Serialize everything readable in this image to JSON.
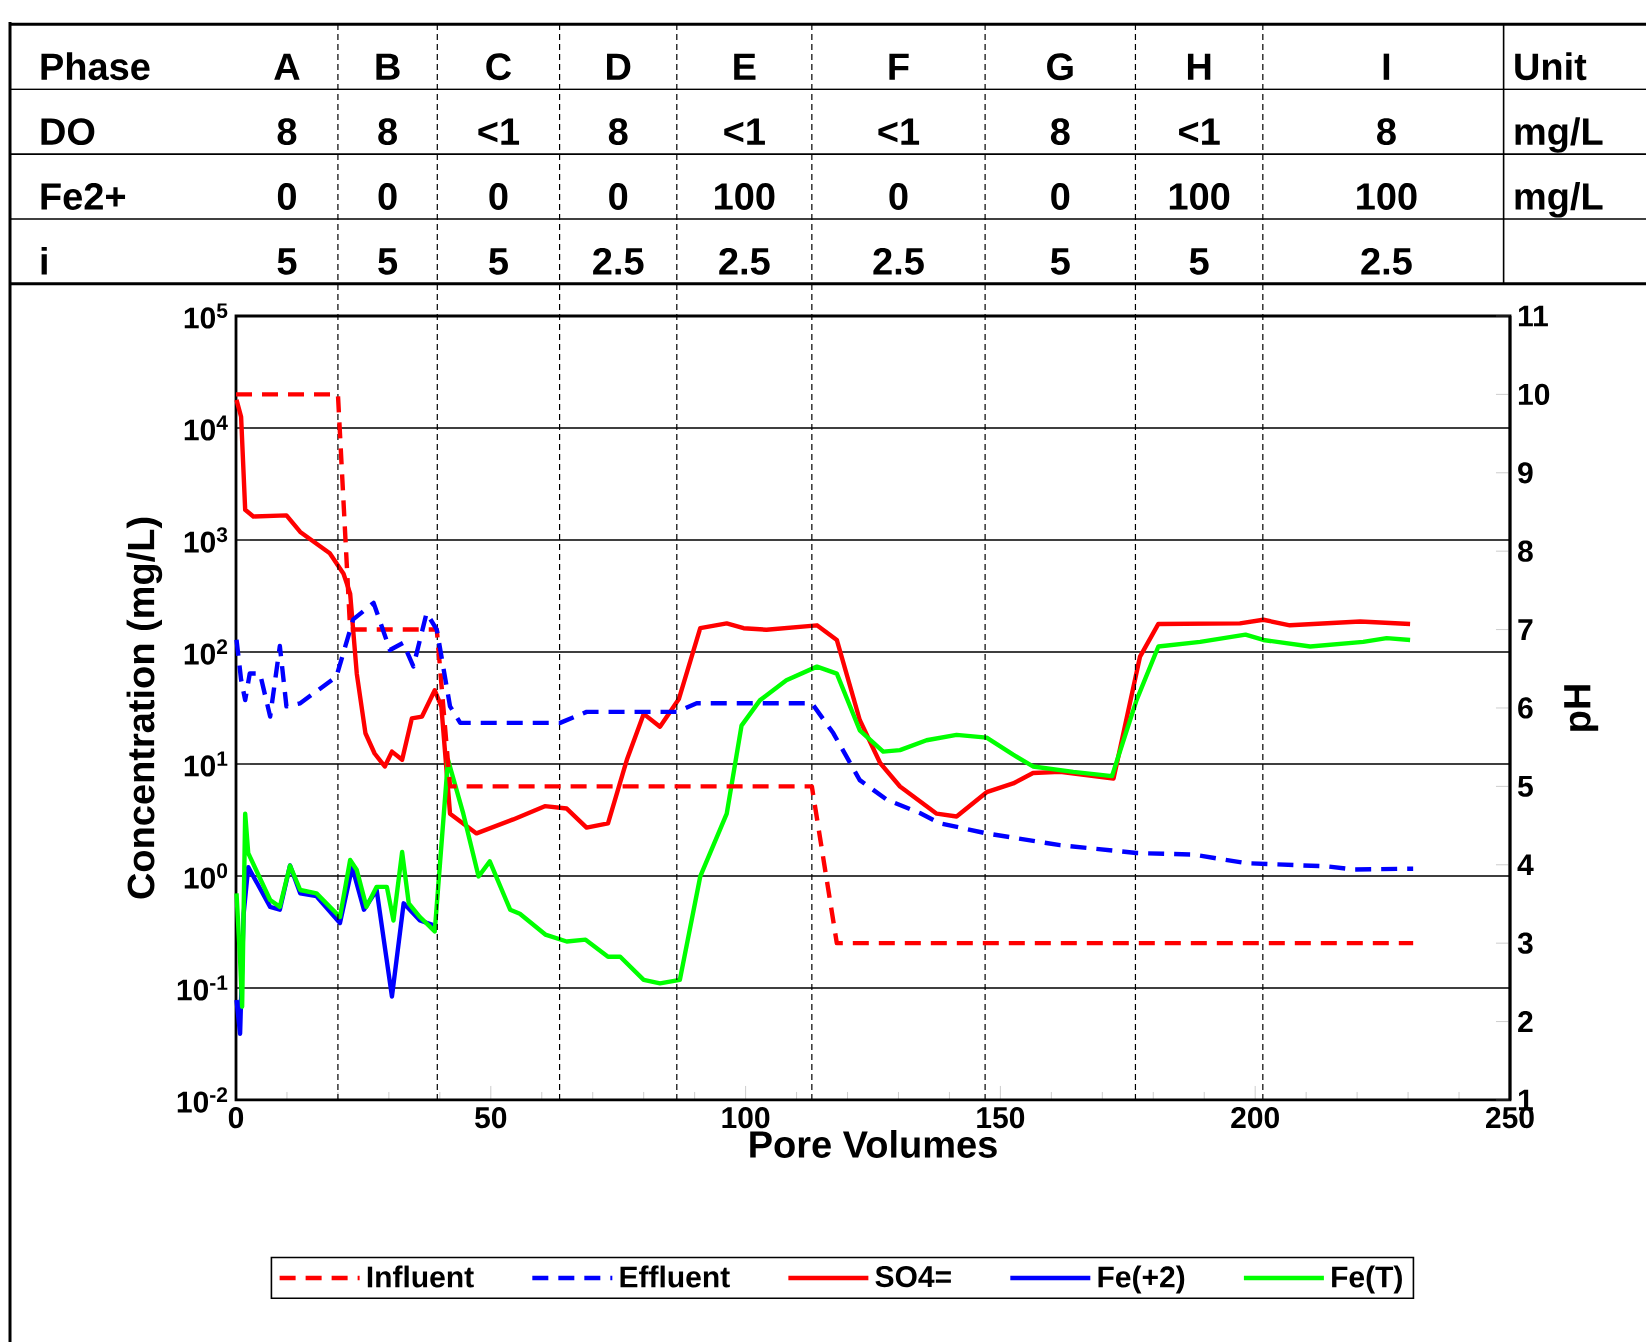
{
  "chart_data": {
    "type": "line",
    "xlabel": "Pore Volumes",
    "ylabel": "Concentration (mg/L)",
    "y2label": "pH",
    "xlim": [
      0,
      250
    ],
    "xticks": [
      0,
      50,
      100,
      150,
      200,
      250
    ],
    "ylim": [
      0.01,
      100000
    ],
    "log": "y",
    "yticks": [
      {
        "value": 0.01,
        "label": "10$^{-2}$"
      },
      {
        "value": 0.1,
        "label": "10$^{-1}$"
      },
      {
        "value": 1,
        "label": "10$^{0}$"
      },
      {
        "value": 10,
        "label": "10$^{1}$"
      },
      {
        "value": 100,
        "label": "10$^{2}$"
      },
      {
        "value": 1000,
        "label": "10$^{3}$"
      },
      {
        "value": 10000,
        "label": "10$^{4}$"
      },
      {
        "value": 100000,
        "label": "10$^{5}$"
      }
    ],
    "y2lim": [
      1,
      11
    ],
    "y2ticks": [
      1,
      2,
      3,
      4,
      5,
      6,
      7,
      8,
      9,
      10,
      11
    ],
    "grid": "y",
    "legend": "bottom",
    "marker": "none",
    "series": [
      {
        "name": "Influent",
        "color": "#ff0000",
        "axis": "y2",
        "line_style": "dashed",
        "x": [
          0,
          20,
          22.4,
          39.4,
          42,
          113,
          117.9,
          231
        ],
        "values": [
          10,
          10,
          7,
          7,
          5,
          5,
          3,
          3
        ]
      },
      {
        "name": "Effluent",
        "color": "#0000ff",
        "axis": "y2",
        "line_style": "dashed",
        "x": [
          0.1,
          1.0,
          1.8,
          2.7,
          4.7,
          6.7,
          8.6,
          9.9,
          12.6,
          19.7,
          23.0,
          27.0,
          30.2,
          32.8,
          34.8,
          37.4,
          39.4,
          42.0,
          44.0,
          63.6,
          68.8,
          86.5,
          90.4,
          113,
          117.2,
          122.4,
          127.7,
          134.2,
          138.1,
          147.3,
          161.7,
          176.7,
          187.9,
          198.3,
          214,
          219.3,
          231
        ],
        "values": [
          6.87,
          6.36,
          6.1,
          6.44,
          6.44,
          5.89,
          6.79,
          6.02,
          6.06,
          6.4,
          7.13,
          7.34,
          6.74,
          6.83,
          6.53,
          7.21,
          7.0,
          6.02,
          5.81,
          5.81,
          5.95,
          5.95,
          6.06,
          6.06,
          5.68,
          5.08,
          4.83,
          4.66,
          4.53,
          4.4,
          4.25,
          4.15,
          4.13,
          4.02,
          3.98,
          3.94,
          3.95
        ]
      },
      {
        "name": "SO4=",
        "color": "#ff0000",
        "line_style": "solid",
        "x": [
          0.1,
          1.0,
          1.8,
          3.4,
          9.9,
          12.6,
          18.4,
          21.1,
          22.4,
          23.7,
          25.4,
          27.2,
          29.2,
          30.6,
          32.6,
          34.5,
          36.5,
          39.0,
          40.3,
          42.0,
          47.2,
          54.4,
          60.6,
          64.9,
          68.8,
          73.0,
          76.7,
          80.0,
          83.2,
          86.9,
          91.1,
          96.3,
          99.6,
          104.1,
          114,
          117.9,
          122.4,
          126.4,
          130.3,
          137.5,
          141.4,
          147.3,
          152.5,
          156.4,
          161.7,
          172.2,
          177.4,
          181.0,
          197.0,
          201.6,
          206.8,
          220.6,
          230.4
        ],
        "values": [
          17800,
          12600,
          1860,
          1620,
          1660,
          1180,
          760,
          500,
          332,
          64,
          18.8,
          12.4,
          9.5,
          12.9,
          10.9,
          25.5,
          26.5,
          45.5,
          32.5,
          3.6,
          2.4,
          3.2,
          4.2,
          4.0,
          2.7,
          2.95,
          10.9,
          28,
          21.5,
          38,
          163,
          180,
          163,
          158,
          173,
          128,
          24.7,
          10.2,
          6.3,
          3.6,
          3.4,
          5.6,
          6.7,
          8.3,
          8.5,
          7.4,
          91,
          178,
          180,
          194,
          173,
          187,
          178
        ]
      },
      {
        "name": "Fe(+2)",
        "color": "#0000ff",
        "line_style": "solid",
        "x": [
          0.1,
          0.8,
          1.5,
          2.4,
          6.7,
          8.6,
          10.6,
          12.6,
          15.8,
          20.4,
          22.8,
          25.1,
          27.6,
          30.6,
          32.9,
          36.1,
          39.0
        ],
        "values": [
          0.078,
          0.039,
          0.46,
          1.2,
          0.53,
          0.5,
          1.24,
          0.7,
          0.66,
          0.38,
          1.2,
          0.5,
          0.75,
          0.084,
          0.57,
          0.4,
          0.36
        ]
      },
      {
        "name": "Fe(T)",
        "color": "#00ff00",
        "line_style": "solid",
        "x": [
          0.1,
          0.8,
          1.2,
          1.8,
          2.4,
          6.7,
          8.6,
          10.6,
          12.6,
          15.8,
          20.4,
          22.4,
          23.7,
          25.6,
          27.6,
          29.6,
          30.9,
          32.6,
          33.9,
          36.1,
          39.0,
          41.6,
          44.6,
          47.6,
          49.8,
          53.8,
          55.7,
          60.7,
          64.9,
          68.6,
          73.0,
          75.4,
          80.0,
          83.2,
          87.1,
          91.1,
          96.3,
          99.2,
          102.8,
          108.0,
          114,
          117.9,
          122.4,
          127.0,
          130.3,
          135.5,
          141.4,
          147.3,
          152.5,
          156.4,
          164.3,
          171.9,
          176.7,
          181.0,
          189.2,
          198.1,
          201.6,
          210.8,
          221.2,
          225.8,
          230.4
        ],
        "values": [
          0.7,
          0.18,
          0.068,
          3.6,
          1.6,
          0.61,
          0.53,
          1.24,
          0.75,
          0.7,
          0.43,
          1.39,
          1.13,
          0.53,
          0.8,
          0.8,
          0.4,
          1.64,
          0.57,
          0.43,
          0.32,
          10.9,
          3.6,
          0.99,
          1.35,
          0.5,
          0.46,
          0.3,
          0.26,
          0.27,
          0.19,
          0.19,
          0.118,
          0.11,
          0.118,
          0.99,
          3.6,
          22,
          37,
          56,
          74,
          64,
          20,
          12.9,
          13.3,
          16.3,
          18.2,
          17.2,
          12.1,
          9.5,
          8.5,
          7.8,
          37,
          112,
          123,
          143,
          128,
          112,
          123,
          133,
          128
        ]
      }
    ],
    "ref_lines": [
      {
        "axis": "x",
        "value": 20,
        "color": "#000000",
        "line_style": "dashed"
      },
      {
        "axis": "x",
        "value": 39.5,
        "color": "#000000",
        "line_style": "dashed"
      },
      {
        "axis": "x",
        "value": 63.5,
        "color": "#000000",
        "line_style": "dashed"
      },
      {
        "axis": "x",
        "value": 86.5,
        "color": "#000000",
        "line_style": "dashed"
      },
      {
        "axis": "x",
        "value": 113,
        "color": "#000000",
        "line_style": "dashed"
      },
      {
        "axis": "x",
        "value": 147,
        "color": "#000000",
        "line_style": "dashed"
      },
      {
        "axis": "x",
        "value": 176.5,
        "color": "#000000",
        "line_style": "dashed"
      },
      {
        "axis": "x",
        "value": 201.5,
        "color": "#000000",
        "line_style": "dashed"
      }
    ],
    "annotations": [
      "Phase",
      "A",
      "B",
      "C",
      "D",
      "E",
      "F",
      "G",
      "H",
      "I",
      "Unit",
      "DO",
      "8",
      "8",
      "<1",
      "8",
      "<1",
      "<1",
      "8",
      "<1",
      "8",
      "mg/L",
      "Fe2+",
      "0",
      "0",
      "0",
      "0",
      "100",
      "0",
      "0",
      "100",
      "100",
      "mg/L",
      "i",
      "5",
      "5",
      "5",
      "2.5",
      "2.5",
      "2.5",
      "5",
      "5",
      "2.5"
    ]
  }
}
